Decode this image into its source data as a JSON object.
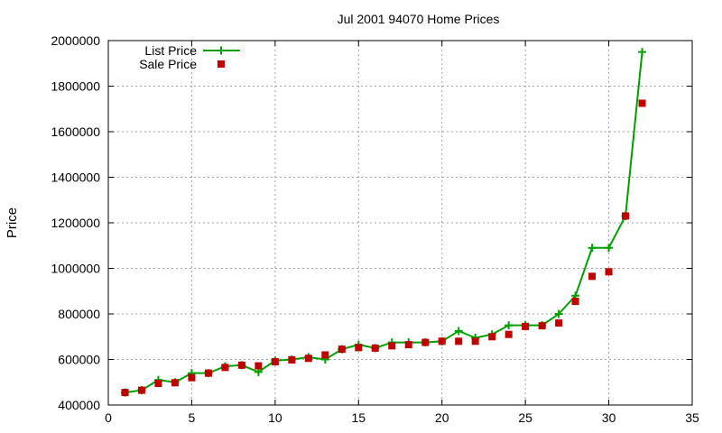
{
  "chart_data": {
    "type": "line",
    "title": "Jul 2001 94070 Home Prices",
    "xlabel": "",
    "ylabel": "Price",
    "xlim": [
      0,
      35
    ],
    "ylim": [
      400000,
      2000000
    ],
    "xticks": [
      0,
      5,
      10,
      15,
      20,
      25,
      30,
      35
    ],
    "yticks": [
      400000,
      600000,
      800000,
      1000000,
      1200000,
      1400000,
      1600000,
      1800000,
      2000000
    ],
    "grid": true,
    "legend_position": "top-left",
    "series": [
      {
        "name": "List Price",
        "style": "line-plus",
        "color": "#00a000",
        "x": [
          1,
          2,
          3,
          4,
          5,
          6,
          7,
          8,
          9,
          10,
          11,
          12,
          13,
          14,
          15,
          16,
          17,
          18,
          19,
          20,
          21,
          22,
          23,
          24,
          25,
          26,
          27,
          28,
          29,
          30,
          31,
          32
        ],
        "values": [
          455000,
          465000,
          510000,
          500000,
          540000,
          540000,
          570000,
          575000,
          545000,
          595000,
          600000,
          610000,
          600000,
          645000,
          665000,
          650000,
          675000,
          675000,
          675000,
          680000,
          725000,
          695000,
          710000,
          750000,
          750000,
          750000,
          800000,
          880000,
          1090000,
          1090000,
          1230000,
          1950000
        ]
      },
      {
        "name": "Sale Price",
        "style": "square",
        "color": "#c00000",
        "x": [
          1,
          2,
          3,
          4,
          5,
          6,
          7,
          8,
          9,
          10,
          11,
          12,
          13,
          14,
          15,
          16,
          17,
          18,
          19,
          20,
          21,
          22,
          23,
          24,
          25,
          26,
          27,
          28,
          29,
          30,
          31,
          32
        ],
        "values": [
          455000,
          465000,
          495000,
          498000,
          520000,
          540000,
          565000,
          575000,
          572000,
          590000,
          598000,
          605000,
          620000,
          645000,
          652000,
          650000,
          660000,
          665000,
          675000,
          680000,
          680000,
          680000,
          700000,
          710000,
          745000,
          748000,
          760000,
          855000,
          965000,
          985000,
          1230000,
          1725000
        ]
      }
    ]
  }
}
